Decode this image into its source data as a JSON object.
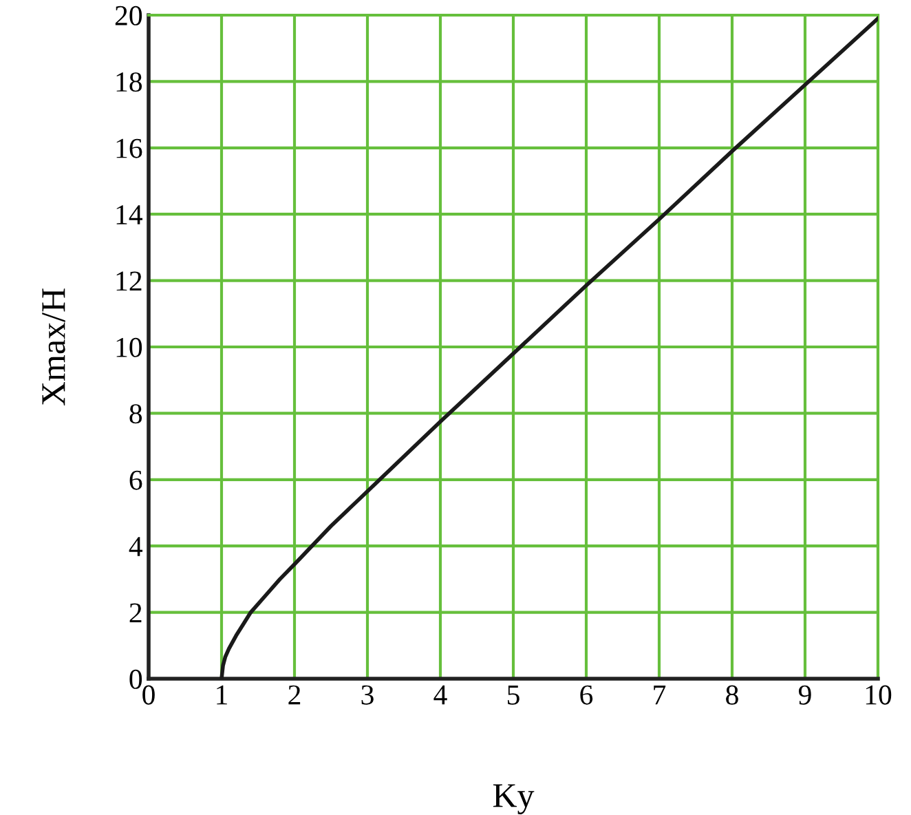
{
  "chart_data": {
    "type": "line",
    "xlabel": "Ky",
    "ylabel": "Xmax/H",
    "x": [
      1,
      1.02,
      1.05,
      1.1,
      1.2,
      1.3,
      1.4,
      1.6,
      1.8,
      2,
      2.5,
      3,
      4,
      5,
      6,
      7,
      8,
      9,
      10
    ],
    "series": [
      {
        "color": "#1a1a1a",
        "values": [
          0,
          0.4,
          0.65,
          0.9,
          1.3,
          1.65,
          2.0,
          2.5,
          3.0,
          3.45,
          4.6,
          5.65,
          7.75,
          9.8,
          11.85,
          13.85,
          15.9,
          17.9,
          19.9
        ]
      }
    ],
    "xlim": [
      0,
      10
    ],
    "ylim": [
      0,
      20
    ],
    "xticks": [
      0,
      1,
      2,
      3,
      4,
      5,
      6,
      7,
      8,
      9,
      10
    ],
    "yticks": [
      0,
      2,
      4,
      6,
      8,
      10,
      12,
      14,
      16,
      18,
      20
    ],
    "grid": true,
    "line_style": "solid",
    "marker": "none"
  }
}
